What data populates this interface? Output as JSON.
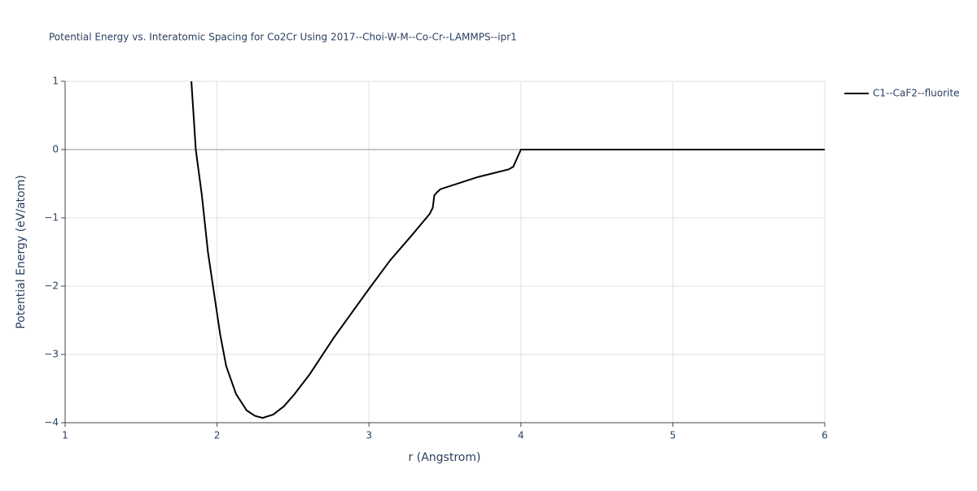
{
  "chart_data": {
    "type": "line",
    "title": "Potential Energy vs. Interatomic Spacing for Co2Cr Using 2017--Choi-W-M--Co-Cr--LAMMPS--ipr1",
    "x_label": "r (Angstrom)",
    "y_label": "Potential Energy (eV/atom)",
    "x": [
      1.831,
      1.86,
      1.9,
      1.94,
      2.0,
      2.02,
      2.06,
      2.125,
      2.195,
      2.25,
      2.3,
      2.37,
      2.44,
      2.51,
      2.61,
      2.77,
      3.0,
      3.14,
      3.28,
      3.4,
      3.42,
      3.43,
      3.45,
      3.47,
      3.72,
      3.92,
      3.95,
      4.0,
      6.0
    ],
    "series": [
      {
        "name": "C1--CaF2--fluorite",
        "color": "#000000",
        "values": [
          1,
          0,
          -0.67,
          -1.5,
          -2.4,
          -2.7,
          -3.17,
          -3.58,
          -3.82,
          -3.9,
          -3.93,
          -3.88,
          -3.76,
          -3.58,
          -3.29,
          -2.75,
          -2.04,
          -1.62,
          -1.26,
          -0.94,
          -0.85,
          -0.67,
          -0.62,
          -0.58,
          -0.4,
          -0.29,
          -0.25,
          0,
          0
        ]
      }
    ],
    "xlim": [
      1,
      6
    ],
    "xticks": [
      1,
      2,
      3,
      4,
      5,
      6
    ],
    "ylim": [
      -4,
      1
    ],
    "yticks": [
      {
        "value": -4,
        "label": "−4"
      },
      {
        "value": -3,
        "label": "−3"
      },
      {
        "value": -2,
        "label": "−2"
      },
      {
        "value": -1,
        "label": "−1"
      },
      0,
      1
    ],
    "grid": true,
    "legend_position": "right"
  }
}
